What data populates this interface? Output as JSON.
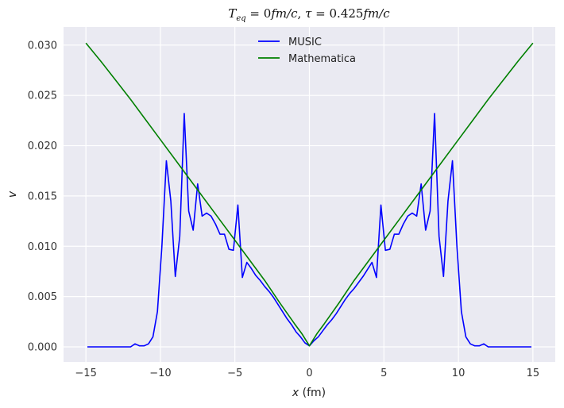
{
  "chart_data": {
    "type": "line",
    "title": "T_eq = 0fm/c, τ = 0.425fm/c",
    "title_parts": {
      "T": "T",
      "eq": "eq",
      "rest1": " = 0",
      "fmc1": "fm/c",
      "comma": ", ",
      "tau": "τ",
      "rest2": " = 0.425",
      "fmc2": "fm/c"
    },
    "xlabel": "x",
    "xlabel_unit": " (fm)",
    "ylabel": "v",
    "xlim": [
      -16.5,
      16.5
    ],
    "ylim": [
      -0.0015,
      0.0318
    ],
    "xticks": [
      -15,
      -10,
      -5,
      0,
      5,
      10,
      15
    ],
    "xtick_labels": [
      "−15",
      "−10",
      "−5",
      "0",
      "5",
      "10",
      "15"
    ],
    "yticks": [
      0.0,
      0.005,
      0.01,
      0.015,
      0.02,
      0.025,
      0.03
    ],
    "ytick_labels": [
      "0.000",
      "0.005",
      "0.010",
      "0.015",
      "0.020",
      "0.025",
      "0.030"
    ],
    "grid": true,
    "legend_position": "top-center",
    "background": "#eaeaf2",
    "series": [
      {
        "name": "MUSIC",
        "color": "#0000ff",
        "x": [
          -14.9,
          -12.0,
          -11.7,
          -11.4,
          -11.1,
          -10.8,
          -10.5,
          -10.2,
          -9.9,
          -9.6,
          -9.3,
          -9.0,
          -8.7,
          -8.4,
          -8.1,
          -7.8,
          -7.5,
          -7.2,
          -6.9,
          -6.6,
          -6.3,
          -6.0,
          -5.7,
          -5.4,
          -5.1,
          -4.8,
          -4.5,
          -4.2,
          -3.9,
          -3.6,
          -3.3,
          -3.0,
          -2.7,
          -2.4,
          -2.1,
          -1.8,
          -1.5,
          -1.2,
          -0.9,
          -0.6,
          -0.3,
          0.0,
          0.3,
          0.6,
          0.9,
          1.2,
          1.5,
          1.8,
          2.1,
          2.4,
          2.7,
          3.0,
          3.3,
          3.6,
          3.9,
          4.2,
          4.5,
          4.8,
          5.1,
          5.4,
          5.7,
          6.0,
          6.3,
          6.6,
          6.9,
          7.2,
          7.5,
          7.8,
          8.1,
          8.4,
          8.7,
          9.0,
          9.3,
          9.6,
          9.9,
          10.2,
          10.5,
          10.8,
          11.1,
          11.4,
          11.7,
          12.0,
          14.9
        ],
        "values": [
          0.0,
          0.0,
          0.0003,
          0.0001,
          0.0001,
          0.0003,
          0.001,
          0.0035,
          0.01,
          0.0185,
          0.0145,
          0.007,
          0.011,
          0.0232,
          0.0135,
          0.0116,
          0.0162,
          0.013,
          0.0133,
          0.013,
          0.0122,
          0.0112,
          0.0112,
          0.0097,
          0.0096,
          0.0141,
          0.0069,
          0.0084,
          0.0078,
          0.0071,
          0.0066,
          0.006,
          0.0055,
          0.0049,
          0.0042,
          0.0035,
          0.0028,
          0.0022,
          0.0015,
          0.001,
          0.0004,
          0.0001,
          0.0006,
          0.001,
          0.0016,
          0.0022,
          0.0027,
          0.0033,
          0.004,
          0.0047,
          0.0053,
          0.0058,
          0.0064,
          0.007,
          0.0077,
          0.0084,
          0.0069,
          0.0141,
          0.0096,
          0.0097,
          0.0112,
          0.0112,
          0.0122,
          0.013,
          0.0133,
          0.013,
          0.0162,
          0.0116,
          0.0135,
          0.0232,
          0.011,
          0.007,
          0.0145,
          0.0185,
          0.01,
          0.0035,
          0.001,
          0.0003,
          0.0001,
          0.0001,
          0.0003,
          0.0,
          0.0
        ]
      },
      {
        "name": "Mathematica",
        "color": "#008000",
        "x": [
          -15,
          -14,
          -13,
          -12,
          -11,
          -10,
          -9,
          -8,
          -7,
          -6,
          -5,
          -4,
          -3,
          -2,
          -1,
          -0.5,
          0,
          0.5,
          1,
          2,
          3,
          4,
          5,
          6,
          7,
          8,
          9,
          10,
          11,
          12,
          13,
          14,
          15
        ],
        "values": [
          0.0302,
          0.0284,
          0.0265,
          0.0246,
          0.0226,
          0.0206,
          0.0186,
          0.0166,
          0.0146,
          0.0126,
          0.0106,
          0.0086,
          0.0066,
          0.0044,
          0.0023,
          0.0013,
          0.0001,
          0.0013,
          0.0023,
          0.0044,
          0.0066,
          0.0086,
          0.0106,
          0.0126,
          0.0146,
          0.0166,
          0.0186,
          0.0206,
          0.0226,
          0.0246,
          0.0265,
          0.0284,
          0.0302
        ]
      }
    ]
  }
}
